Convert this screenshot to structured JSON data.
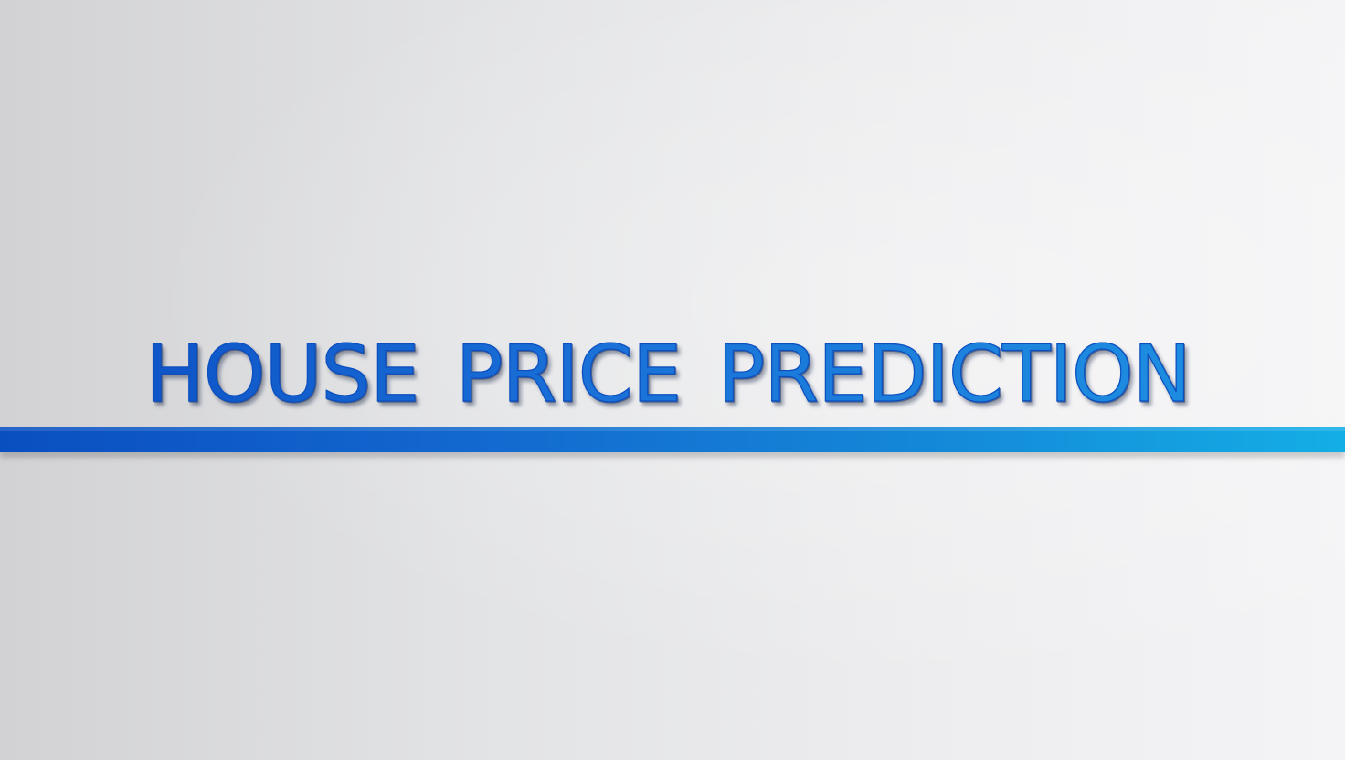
{
  "title": {
    "text": "HOUSE PRICE PREDICTION"
  },
  "colors": {
    "accent_start": "#0a4fc0",
    "accent_end": "#14aee6",
    "background": "#e6e6e8"
  }
}
